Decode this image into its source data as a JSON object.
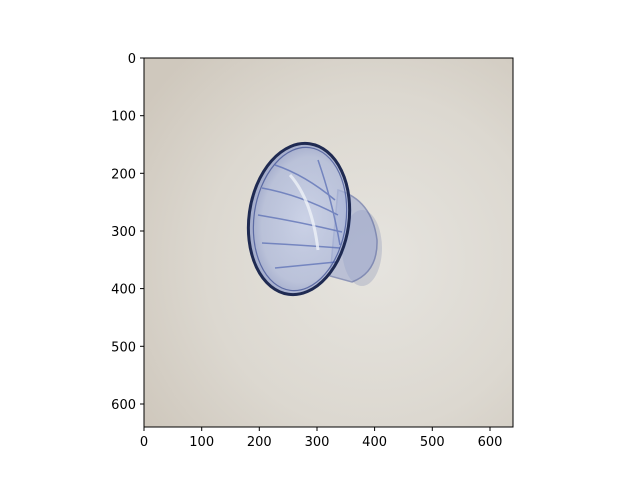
{
  "image": {
    "subject": "glass-cup",
    "colors": {
      "background_light": "#e3e1dc",
      "background_mid": "#d4cfc6",
      "glass_rim": "#1f2a52",
      "glass_tint": "#5b6fb5",
      "glass_light": "#b9c3df"
    }
  },
  "axes": {
    "xlim": [
      0,
      640
    ],
    "ylim": [
      640,
      0
    ],
    "x_ticks": [
      "0",
      "100",
      "200",
      "300",
      "400",
      "500",
      "600"
    ],
    "y_ticks": [
      "0",
      "100",
      "200",
      "300",
      "400",
      "500",
      "600"
    ]
  }
}
